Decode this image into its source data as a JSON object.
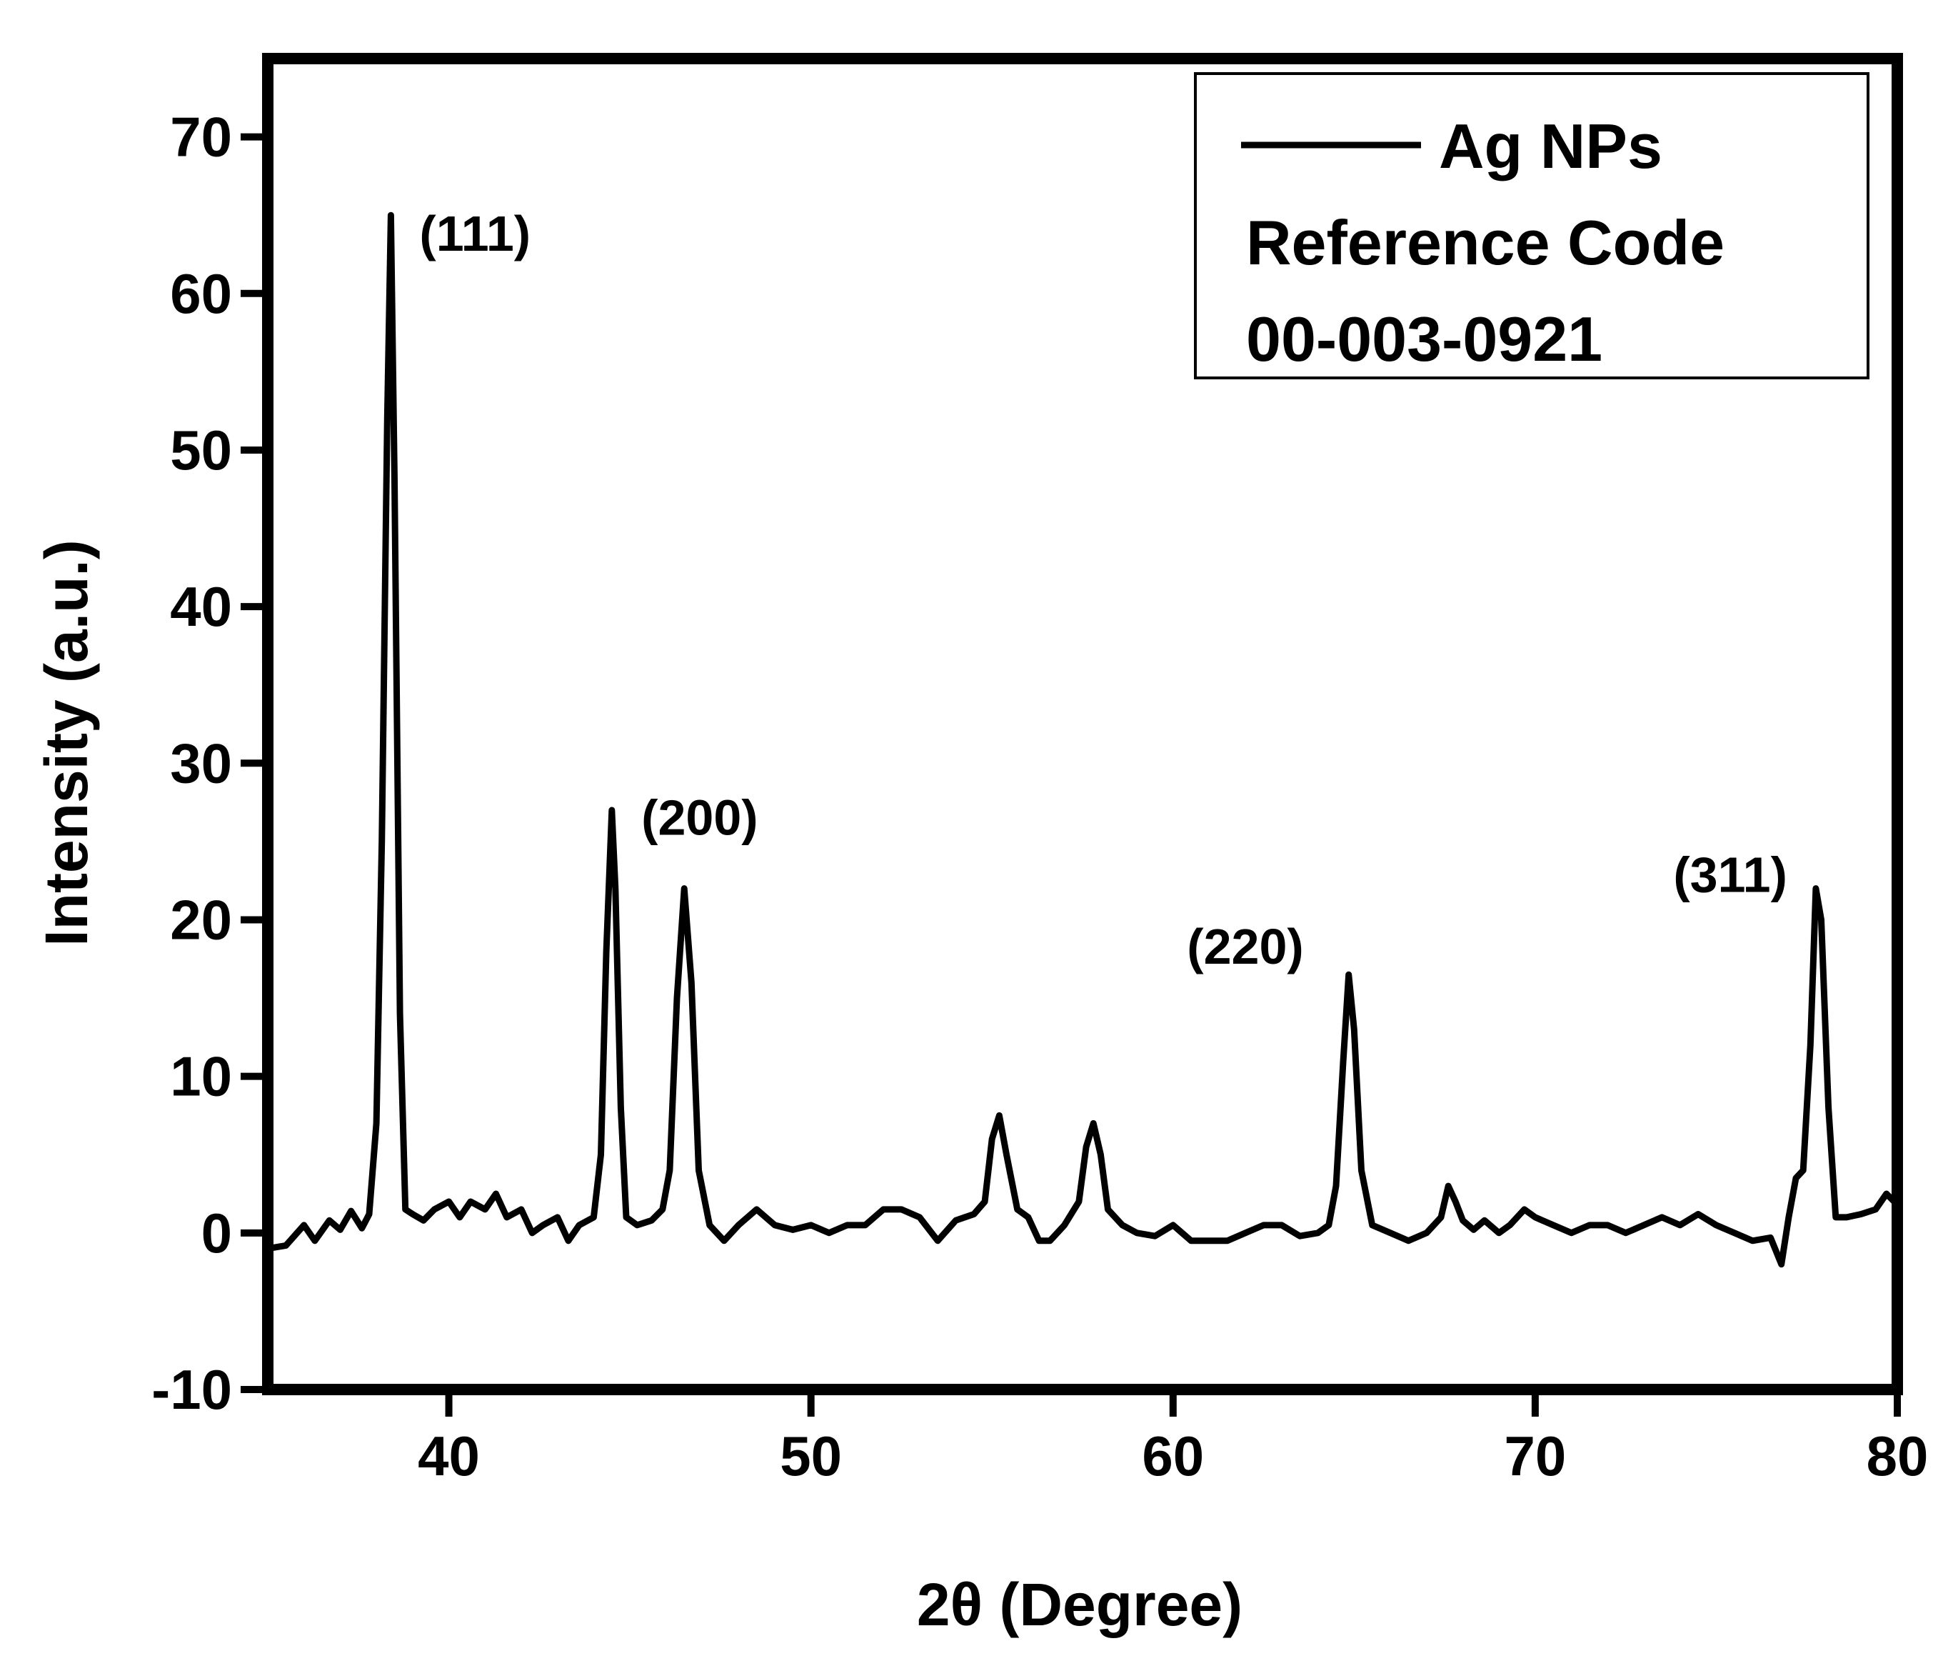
{
  "chart_data": {
    "type": "line",
    "xlabel": "2θ (Degree)",
    "ylabel": "Intensity (a.u.)",
    "xlim": [
      35,
      80
    ],
    "ylim": [
      -10,
      75
    ],
    "x_ticks": [
      40,
      50,
      60,
      70,
      80
    ],
    "y_ticks": [
      -10,
      0,
      10,
      20,
      30,
      40,
      50,
      60,
      70
    ],
    "grid": false,
    "legend_placement": "top-right",
    "legend": {
      "series_name": "Ag NPs",
      "note_line1": "Reference Code",
      "note_line2": "00-003-0921"
    },
    "series": [
      {
        "name": "Ag NPs",
        "color": "#000000",
        "x": [
          35.0,
          35.5,
          36.0,
          36.3,
          36.7,
          37.0,
          37.3,
          37.6,
          37.8,
          38.0,
          38.15,
          38.3,
          38.4,
          38.5,
          38.65,
          38.8,
          39.0,
          39.3,
          39.6,
          40.0,
          40.3,
          40.6,
          41.0,
          41.3,
          41.6,
          42.0,
          42.3,
          42.6,
          43.0,
          43.3,
          43.6,
          44.0,
          44.2,
          44.35,
          44.5,
          44.6,
          44.75,
          44.9,
          45.2,
          45.6,
          45.9,
          46.1,
          46.3,
          46.5,
          46.7,
          46.9,
          47.2,
          47.6,
          48.0,
          48.5,
          49.0,
          49.5,
          50.0,
          50.5,
          51.0,
          51.5,
          52.0,
          52.5,
          53.0,
          53.5,
          54.0,
          54.5,
          54.8,
          55.0,
          55.2,
          55.4,
          55.7,
          56.0,
          56.3,
          56.6,
          57.0,
          57.4,
          57.6,
          57.8,
          58.0,
          58.2,
          58.6,
          59.0,
          59.5,
          60.0,
          60.5,
          61.0,
          61.5,
          62.0,
          62.5,
          63.0,
          63.5,
          64.0,
          64.3,
          64.5,
          64.7,
          64.85,
          65.0,
          65.2,
          65.5,
          66.0,
          66.5,
          67.0,
          67.4,
          67.6,
          67.8,
          68.0,
          68.3,
          68.6,
          69.0,
          69.3,
          69.7,
          70.0,
          70.5,
          71.0,
          71.5,
          72.0,
          72.5,
          73.0,
          73.5,
          74.0,
          74.5,
          75.0,
          75.5,
          76.0,
          76.5,
          76.8,
          77.0,
          77.2,
          77.4,
          77.6,
          77.75,
          77.9,
          78.1,
          78.3,
          78.6,
          79.0,
          79.4,
          79.7,
          80.0
        ],
        "y": [
          -1.0,
          -0.8,
          0.5,
          -0.5,
          0.8,
          0.2,
          1.4,
          0.3,
          1.2,
          7.0,
          25.0,
          52.0,
          65.0,
          48.0,
          14.0,
          1.5,
          1.2,
          0.8,
          1.5,
          2.0,
          1.0,
          2.0,
          1.5,
          2.5,
          1.0,
          1.5,
          0.0,
          0.5,
          1.0,
          -0.5,
          0.5,
          1.0,
          5.0,
          18.0,
          27.0,
          22.0,
          8.0,
          1.0,
          0.5,
          0.8,
          1.5,
          4.0,
          15.0,
          22.0,
          16.0,
          4.0,
          0.5,
          -0.5,
          0.5,
          1.5,
          0.5,
          0.2,
          0.5,
          0.0,
          0.5,
          0.5,
          1.5,
          1.5,
          1.0,
          -0.5,
          0.8,
          1.2,
          2.0,
          6.0,
          7.5,
          5.0,
          1.5,
          1.0,
          -0.5,
          -0.5,
          0.5,
          2.0,
          5.5,
          7.0,
          5.0,
          1.5,
          0.5,
          0.0,
          -0.2,
          0.5,
          -0.5,
          -0.5,
          -0.5,
          0.0,
          0.5,
          0.5,
          -0.2,
          0.0,
          0.5,
          3.0,
          11.0,
          16.5,
          13.0,
          4.0,
          0.5,
          0.0,
          -0.5,
          0.0,
          1.0,
          3.0,
          2.0,
          0.8,
          0.2,
          0.8,
          0.0,
          0.5,
          1.5,
          1.0,
          0.5,
          0.0,
          0.5,
          0.5,
          0.0,
          0.5,
          1.0,
          0.5,
          1.2,
          0.5,
          0.0,
          -0.5,
          -0.3,
          -2.0,
          1.0,
          3.5,
          4.0,
          12.0,
          22.0,
          20.0,
          8.0,
          1.0,
          1.0,
          1.2,
          1.5,
          2.5,
          1.8
        ]
      }
    ],
    "annotations": [
      {
        "text": "(111)",
        "x": 38.4,
        "y": 65
      },
      {
        "text": "(200)",
        "x": 46.5,
        "y": 22
      },
      {
        "text": "(220)",
        "x": 64.85,
        "y": 16.5
      },
      {
        "text": "(311)",
        "x": 77.75,
        "y": 22
      }
    ]
  }
}
